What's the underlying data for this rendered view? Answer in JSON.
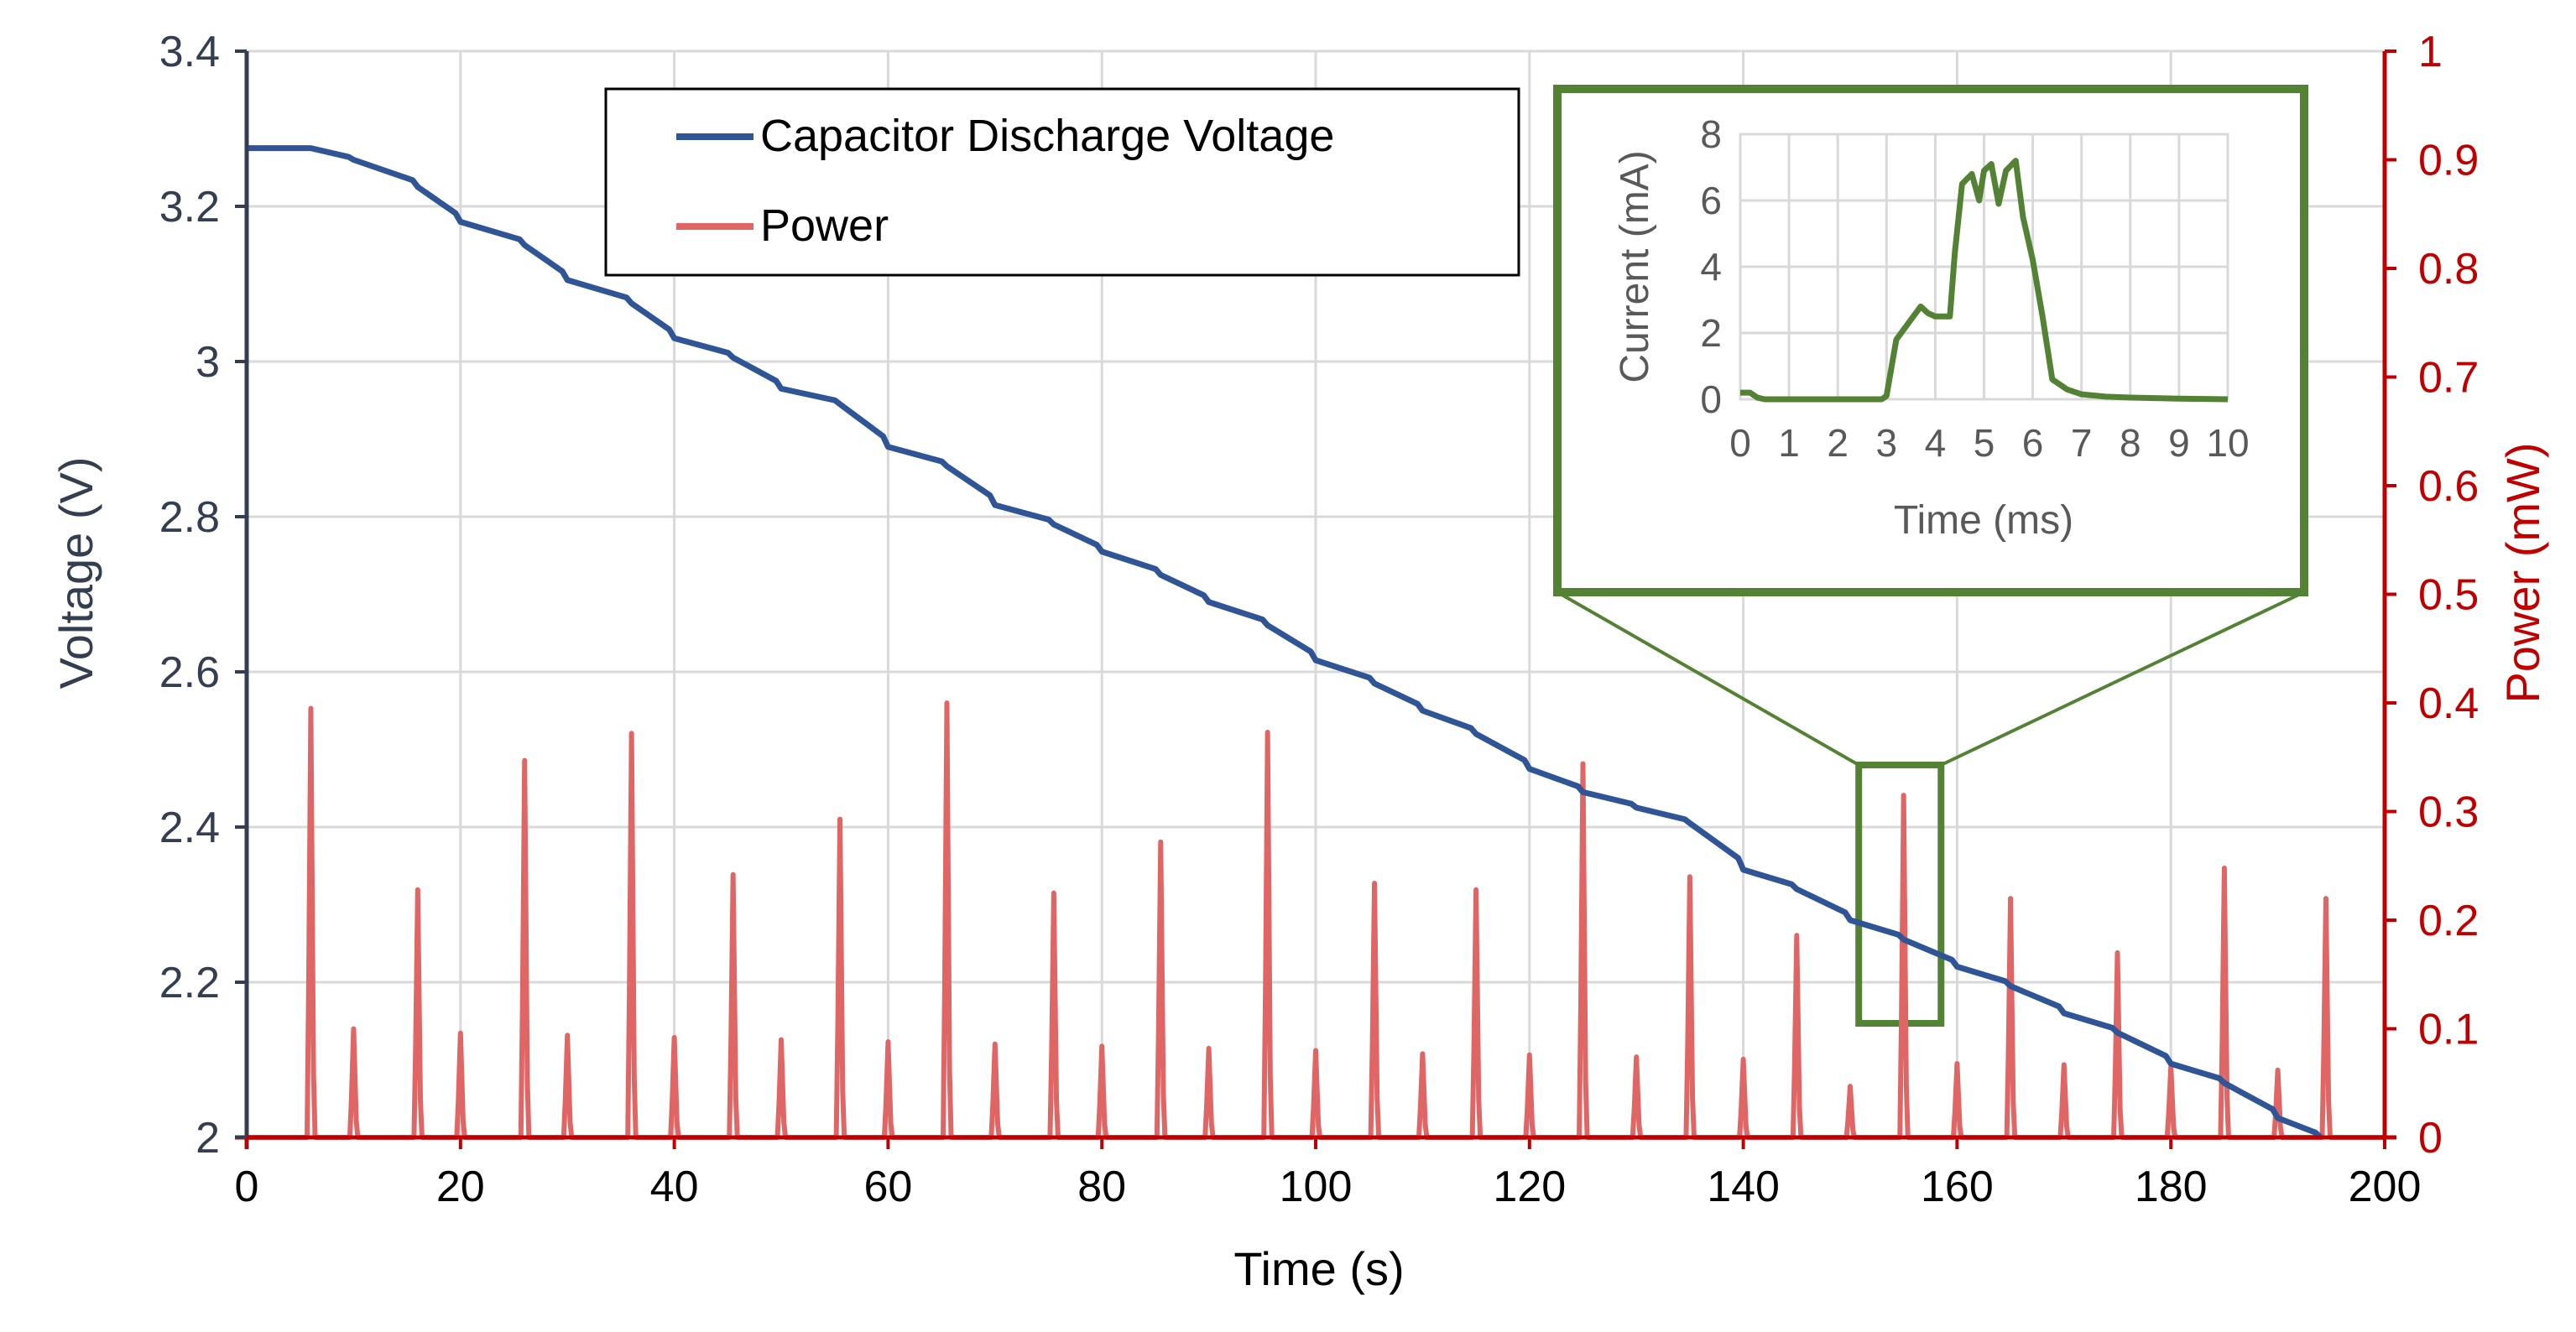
{
  "colors": {
    "voltage": "#2f5597",
    "power": "#e06666",
    "power_axis": "#c00000",
    "left_axis_text": "#333f50",
    "inset": "#548235",
    "grid": "#d9d9d9",
    "text": "#000000",
    "inset_text": "#595959"
  },
  "chart_data": [
    {
      "id": "main",
      "type": "line",
      "xlabel": "Time (s)",
      "ylabel": "Voltage (V)",
      "y2label": "Power (mW)",
      "xlim": [
        0,
        200
      ],
      "ylim": [
        2,
        3.4
      ],
      "y2lim": [
        0,
        1
      ],
      "x_ticks": [
        "0",
        "20",
        "40",
        "60",
        "80",
        "100",
        "120",
        "140",
        "160",
        "180",
        "200"
      ],
      "y_ticks": [
        "2",
        "2.2",
        "2.4",
        "2.6",
        "2.8",
        "3",
        "3.2",
        "3.4"
      ],
      "y2_ticks": [
        "0",
        "0.1",
        "0.2",
        "0.3",
        "0.4",
        "0.5",
        "0.6",
        "0.7",
        "0.8",
        "0.9",
        "1"
      ],
      "grid": true,
      "legend_position": "top-center",
      "series": [
        {
          "name": "Capacitor Discharge Voltage",
          "axis": "left",
          "x": [
            0,
            6,
            10,
            16,
            20,
            26,
            30,
            36,
            40,
            45.5,
            50,
            55.5,
            60,
            65.5,
            70,
            75.5,
            80,
            85.5,
            90,
            95.5,
            100,
            105.5,
            110,
            115,
            120,
            125,
            130,
            135,
            140,
            145,
            150,
            155,
            160,
            165,
            170,
            175,
            180,
            185,
            190,
            194
          ],
          "y": [
            3.275,
            3.275,
            3.26,
            3.225,
            3.18,
            3.15,
            3.105,
            3.075,
            3.03,
            3.005,
            2.965,
            2.945,
            2.89,
            2.865,
            2.815,
            2.79,
            2.755,
            2.725,
            2.69,
            2.66,
            2.615,
            2.585,
            2.55,
            2.52,
            2.475,
            2.445,
            2.425,
            2.405,
            2.345,
            2.32,
            2.28,
            2.255,
            2.22,
            2.195,
            2.16,
            2.135,
            2.095,
            2.07,
            2.025,
            2.0
          ]
        },
        {
          "name": "Power",
          "axis": "right",
          "spikes": [
            {
              "t": 6,
              "p": 0.395
            },
            {
              "t": 10,
              "p": 0.1
            },
            {
              "t": 16,
              "p": 0.228
            },
            {
              "t": 20,
              "p": 0.096
            },
            {
              "t": 26,
              "p": 0.347
            },
            {
              "t": 30,
              "p": 0.094
            },
            {
              "t": 36,
              "p": 0.372
            },
            {
              "t": 40,
              "p": 0.092
            },
            {
              "t": 45.5,
              "p": 0.242
            },
            {
              "t": 50,
              "p": 0.09
            },
            {
              "t": 55.5,
              "p": 0.293
            },
            {
              "t": 60,
              "p": 0.088
            },
            {
              "t": 65.5,
              "p": 0.4
            },
            {
              "t": 70,
              "p": 0.086
            },
            {
              "t": 75.5,
              "p": 0.225
            },
            {
              "t": 80,
              "p": 0.084
            },
            {
              "t": 85.5,
              "p": 0.272
            },
            {
              "t": 90,
              "p": 0.082
            },
            {
              "t": 95.5,
              "p": 0.373
            },
            {
              "t": 100,
              "p": 0.08
            },
            {
              "t": 105.5,
              "p": 0.234
            },
            {
              "t": 110,
              "p": 0.077
            },
            {
              "t": 115,
              "p": 0.228
            },
            {
              "t": 120,
              "p": 0.076
            },
            {
              "t": 125,
              "p": 0.344
            },
            {
              "t": 130,
              "p": 0.074
            },
            {
              "t": 135,
              "p": 0.24
            },
            {
              "t": 140,
              "p": 0.072
            },
            {
              "t": 145,
              "p": 0.186
            },
            {
              "t": 150,
              "p": 0.047
            },
            {
              "t": 155,
              "p": 0.315
            },
            {
              "t": 160,
              "p": 0.068
            },
            {
              "t": 165,
              "p": 0.22
            },
            {
              "t": 170,
              "p": 0.067
            },
            {
              "t": 175,
              "p": 0.17
            },
            {
              "t": 180,
              "p": 0.065
            },
            {
              "t": 185,
              "p": 0.248
            },
            {
              "t": 190,
              "p": 0.062
            },
            {
              "t": 194.5,
              "p": 0.22
            }
          ]
        }
      ]
    },
    {
      "id": "inset",
      "type": "line",
      "xlabel": "Time (ms)",
      "ylabel": "Current (mA)",
      "xlim": [
        0,
        10
      ],
      "ylim": [
        0,
        8
      ],
      "x_ticks": [
        "0",
        "1",
        "2",
        "3",
        "4",
        "5",
        "6",
        "7",
        "8",
        "9",
        "10"
      ],
      "y_ticks": [
        "0",
        "2",
        "4",
        "6",
        "8"
      ],
      "grid": true,
      "series": [
        {
          "x": [
            0,
            0.2,
            0.35,
            0.5,
            1,
            2,
            2.9,
            3.0,
            3.2,
            3.5,
            3.7,
            3.85,
            4.0,
            4.3,
            4.4,
            4.55,
            4.75,
            4.9,
            5.0,
            5.15,
            5.3,
            5.45,
            5.65,
            5.8,
            6.0,
            6.2,
            6.4,
            6.7,
            7.0,
            7.5,
            8,
            9,
            10
          ],
          "y": [
            0.2,
            0.2,
            0.05,
            0,
            0,
            0,
            0,
            0.1,
            1.8,
            2.4,
            2.8,
            2.6,
            2.5,
            2.5,
            4.4,
            6.5,
            6.8,
            6.0,
            6.9,
            7.1,
            5.9,
            6.9,
            7.2,
            5.5,
            4.2,
            2.5,
            0.6,
            0.3,
            0.15,
            0.08,
            0.05,
            0.02,
            0
          ]
        }
      ]
    }
  ]
}
